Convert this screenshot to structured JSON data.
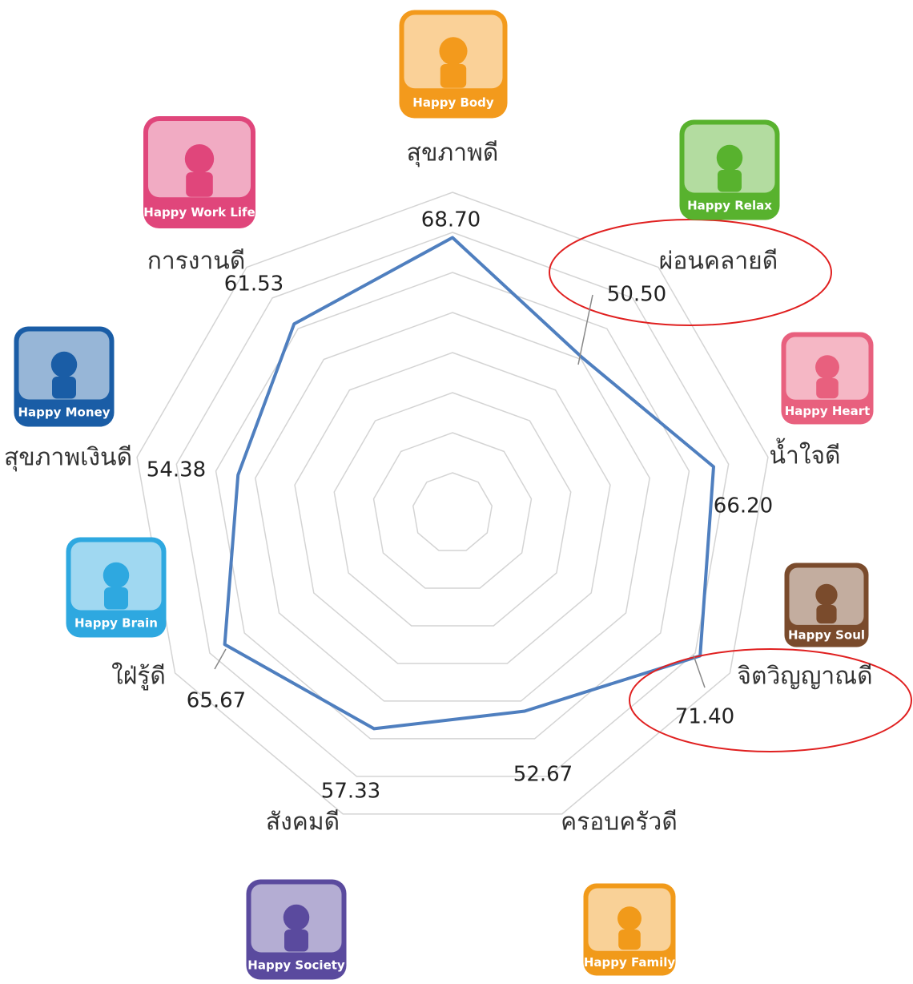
{
  "chart_data": {
    "type": "radar",
    "categories": [
      "สุขภาพดี",
      "ผ่อนคลายดี",
      "น้ำใจดี",
      "จิตวิญญาณดี",
      "ครอบครัวดี",
      "สังคมดี",
      "ใฝ่รู้ดี",
      "สุขภาพเงินดี",
      "การงานดี"
    ],
    "icon_labels": [
      "Happy Body",
      "Happy Relax",
      "Happy Heart",
      "Happy Soul",
      "Happy Family",
      "Happy Society",
      "Happy Brain",
      "Happy Money",
      "Happy Work Life"
    ],
    "icon_colors": [
      "#f39a1c",
      "#58b22e",
      "#e8607e",
      "#7a4b2c",
      "#f19a1a",
      "#5a4a9e",
      "#2ea8e0",
      "#1a5da6",
      "#e0467b"
    ],
    "values": [
      68.7,
      50.5,
      66.2,
      71.4,
      52.67,
      57.33,
      65.67,
      54.38,
      61.53
    ],
    "value_labels": [
      "68.70",
      "50.50",
      "66.20",
      "71.40",
      "52.67",
      "57.33",
      "65.67",
      "54.38",
      "61.53"
    ],
    "color": "#4f7fbf",
    "rlim": [
      0,
      80
    ],
    "rticks": [
      10,
      20,
      30,
      40,
      50,
      60,
      70,
      80
    ],
    "grid": true
  }
}
